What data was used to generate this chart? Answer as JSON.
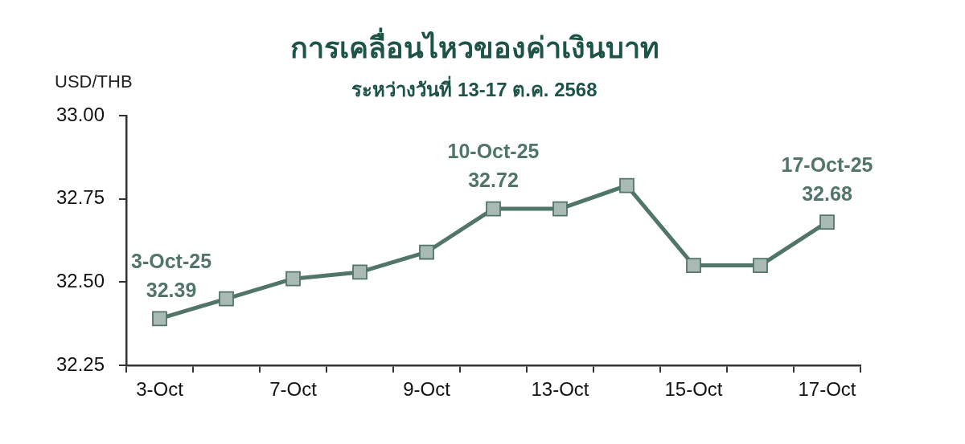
{
  "chart_data": {
    "type": "line",
    "title": "การเคลื่อนไหวของค่าเงินบาท",
    "subtitle": "ระหว่างวันที่ 13-17 ต.ค. 2568",
    "ylabel": "USD/THB",
    "categories": [
      "3-Oct",
      null,
      "7-Oct",
      null,
      "9-Oct",
      null,
      "13-Oct",
      null,
      "15-Oct",
      null,
      "17-Oct"
    ],
    "values": [
      32.39,
      32.45,
      32.51,
      32.53,
      32.59,
      32.72,
      32.72,
      32.79,
      32.55,
      32.55,
      32.68
    ],
    "value_labels": [
      "3-Oct-25\n32.39",
      null,
      null,
      null,
      null,
      "10-Oct-25\n32.72",
      null,
      null,
      null,
      null,
      "17-Oct-25\n32.68"
    ],
    "color": "#52756a",
    "ylim": [
      32.25,
      33
    ],
    "yticks": [
      32.25,
      {
        "value": 32.5,
        "label": "32.50"
      },
      32.75,
      {
        "value": 33,
        "label": "33.00"
      }
    ],
    "marker": "square",
    "line_style": "solid"
  }
}
